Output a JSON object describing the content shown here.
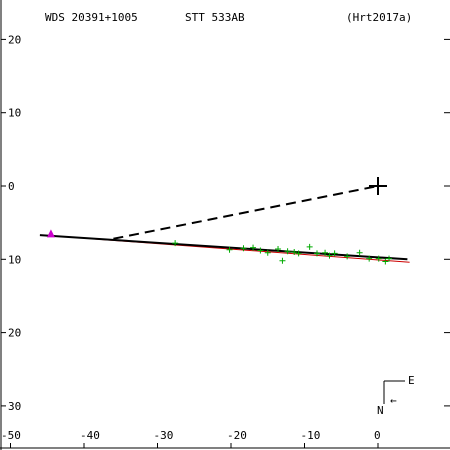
{
  "header": {
    "wds": "WDS 20391+1005",
    "name": "STT 533AB",
    "ref": "(Hrt2017a)"
  },
  "compass": {
    "east": "E",
    "north": "N",
    "arrow": "←"
  },
  "colors": {
    "axis": "#000000",
    "orbit": "#000000",
    "fit_line": "#cc0000",
    "observation": "#00aa00",
    "first_obs": "#cc00cc"
  },
  "chart_data": {
    "type": "scatter",
    "xlim": [
      -50,
      5
    ],
    "ylim": [
      -33,
      22
    ],
    "x_ticks": [
      -50,
      -40,
      -30,
      -20,
      -10,
      0
    ],
    "y_ticks": [
      20,
      10,
      0,
      -10,
      -20,
      -30
    ],
    "x_tick_labels": [
      "-50",
      "-40",
      "-30",
      "-20",
      "-10",
      "0"
    ],
    "y_tick_labels": [
      "20",
      "10",
      "0",
      "10",
      "20",
      "30"
    ],
    "primary": {
      "x": 0,
      "y": 0
    },
    "first_observation": {
      "x": -44.5,
      "y": -6.6
    },
    "observations": [
      {
        "x": -27.6,
        "y": -7.8
      },
      {
        "x": -20.2,
        "y": -8.7
      },
      {
        "x": -18.3,
        "y": -8.5
      },
      {
        "x": -16.0,
        "y": -8.8
      },
      {
        "x": -15.0,
        "y": -9.1
      },
      {
        "x": -13.6,
        "y": -8.6
      },
      {
        "x": -13.0,
        "y": -10.2
      },
      {
        "x": -12.3,
        "y": -8.9
      },
      {
        "x": -10.8,
        "y": -9.2
      },
      {
        "x": -9.3,
        "y": -8.3
      },
      {
        "x": -8.3,
        "y": -9.2
      },
      {
        "x": -7.2,
        "y": -9.1
      },
      {
        "x": -6.6,
        "y": -9.5
      },
      {
        "x": -5.9,
        "y": -9.2
      },
      {
        "x": -4.2,
        "y": -9.6
      },
      {
        "x": -2.5,
        "y": -9.1
      },
      {
        "x": -1.2,
        "y": -9.9
      },
      {
        "x": 0.1,
        "y": -9.9
      },
      {
        "x": 1.0,
        "y": -10.3
      },
      {
        "x": 1.5,
        "y": -9.9
      },
      {
        "x": -17.0,
        "y": -8.4
      },
      {
        "x": -11.4,
        "y": -9.0
      }
    ],
    "orbit_line": [
      {
        "x": -46.0,
        "y": -6.7
      },
      {
        "x": 4.0,
        "y": -10.0
      }
    ],
    "fit_line": [
      {
        "x": -39.0,
        "y": -7.2
      },
      {
        "x": 4.3,
        "y": -10.4
      }
    ],
    "node_line": [
      {
        "x": -36.0,
        "y": -7.2
      },
      {
        "x": 0,
        "y": 0
      }
    ]
  }
}
